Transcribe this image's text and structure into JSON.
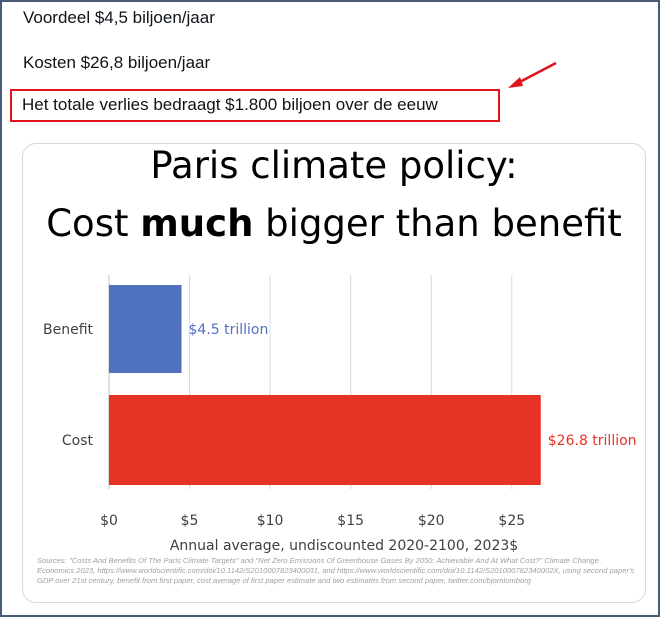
{
  "tweet": {
    "line1": "Voordeel $4,5 biljoen/jaar",
    "line2": "Kosten $26,8 biljoen/jaar",
    "line3": "Het totale verlies bedraagt $1.800 biljoen over de eeuw"
  },
  "colors": {
    "highlight": "#e0141b",
    "benefit": "#4f71be",
    "cost": "#e63325"
  },
  "chart_data": {
    "type": "bar",
    "orientation": "horizontal",
    "title_line1": "Paris climate policy:",
    "title_line2_pre": "Cost ",
    "title_line2_bold": "much",
    "title_line2_post": " bigger than benefit",
    "categories": [
      "Benefit",
      "Cost"
    ],
    "values": [
      4.5,
      26.8
    ],
    "data_labels": [
      "$4.5 trillion",
      "$26.8 trillion"
    ],
    "xlim": [
      0,
      27
    ],
    "xticks": [
      0,
      5,
      10,
      15,
      20,
      25
    ],
    "xtick_labels": [
      "$0",
      "$5",
      "$10",
      "$15",
      "$20",
      "$25"
    ],
    "xlabel": "Annual average, undiscounted 2020-2100, 2023$",
    "grid": true,
    "sources": "Sources: \"Costs And Benefits Of The Paris Climate Targets\" and \"Net Zero Emissions Of Greenhouse Gases By 2050: Achievable And At What Cost?\" Climate Change Economics 2023, https://www.worldscientific.com/doi/10.1142/S2010007823400031, and https://www.worldscientific.com/doi/10.1142/S201000782340002X, using second paper's GDP over 21st century, benefit from first paper, cost average of first paper estimate and two estimates from second paper, twitter.com/bjornlomborg"
  }
}
